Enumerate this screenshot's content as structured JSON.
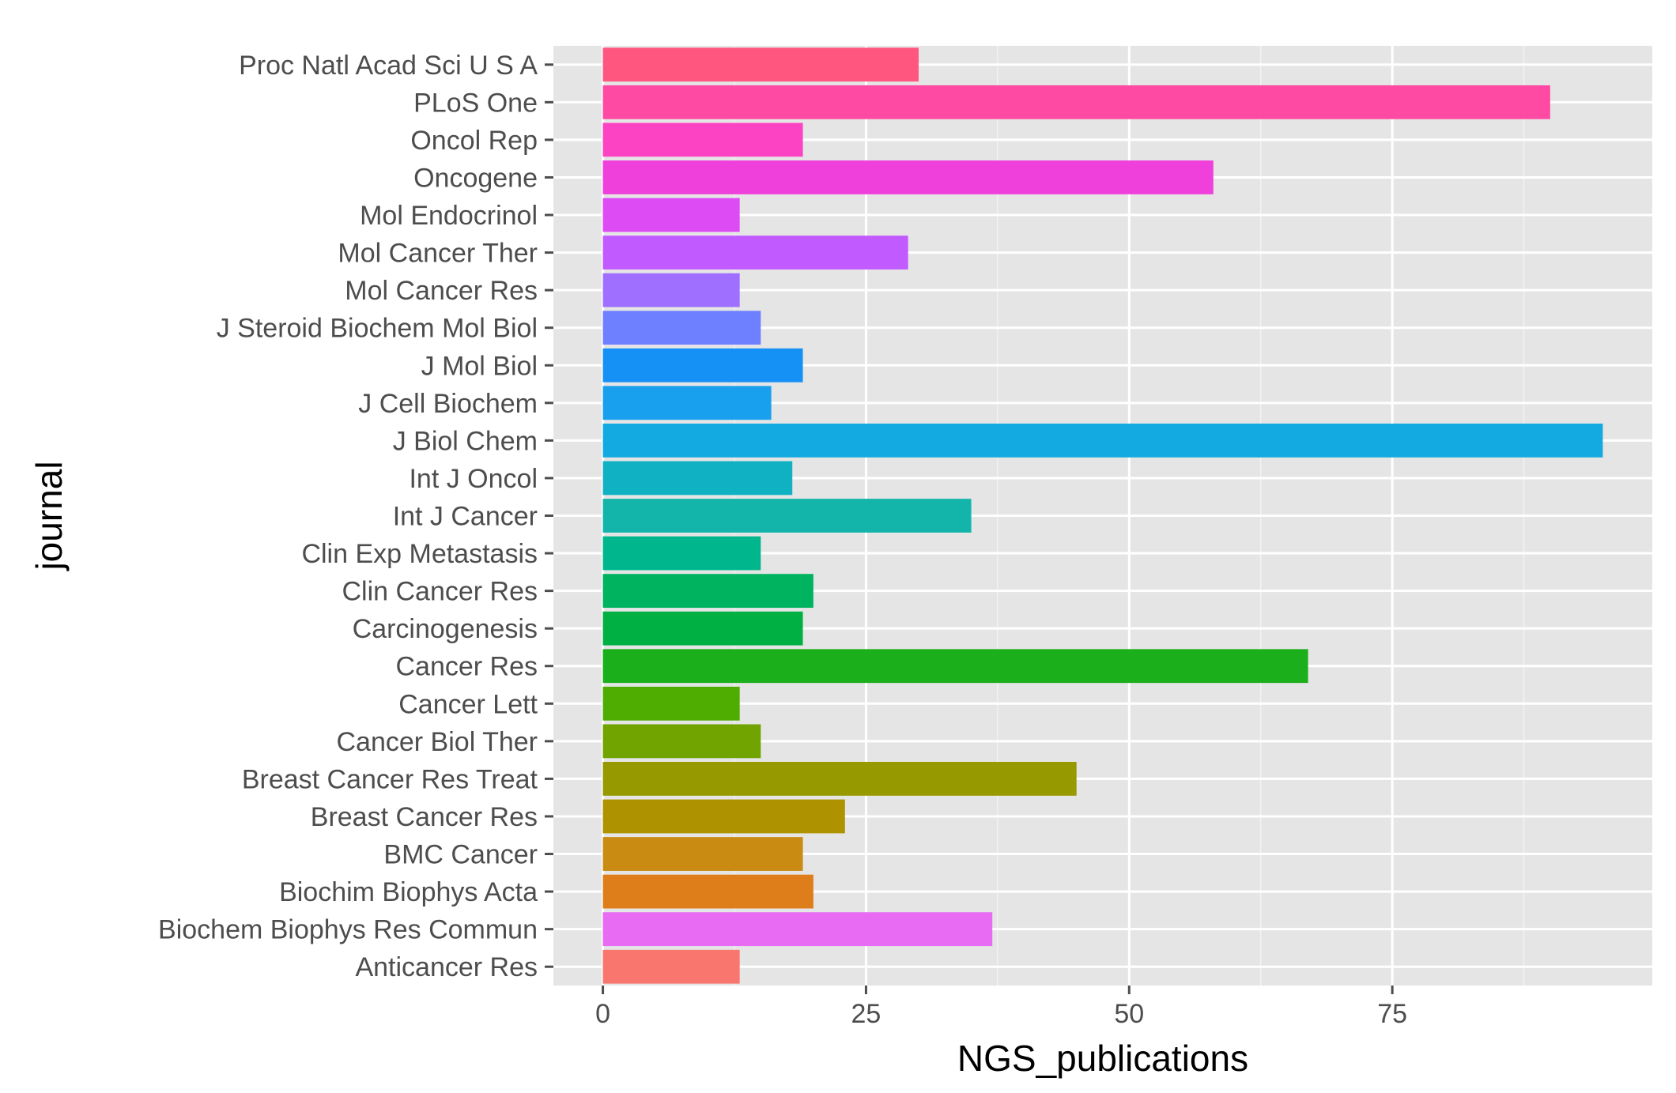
{
  "chart_data": {
    "type": "bar",
    "orientation": "horizontal",
    "title": "",
    "xlabel": "NGS_publications",
    "ylabel": "journal",
    "xlim": [
      -4.7,
      99.7
    ],
    "xticks": [
      0,
      25,
      50,
      75
    ],
    "grid": true,
    "legend": "none",
    "categories": [
      "Anticancer Res",
      "Biochem Biophys Res Commun",
      "Biochim Biophys Acta",
      "BMC Cancer",
      "Breast Cancer Res",
      "Breast Cancer Res Treat",
      "Cancer Biol Ther",
      "Cancer Lett",
      "Cancer Res",
      "Carcinogenesis",
      "Clin Cancer Res",
      "Clin Exp Metastasis",
      "Int J Cancer",
      "Int J Oncol",
      "J Biol Chem",
      "J Cell Biochem",
      "J Mol Biol",
      "J Steroid Biochem Mol Biol",
      "Mol Cancer Res",
      "Mol Cancer Ther",
      "Mol Endocrinol",
      "Oncogene",
      "Oncol Rep",
      "PLoS One",
      "Proc Natl Acad Sci U S A"
    ],
    "values": [
      13,
      37,
      20,
      19,
      23,
      45,
      15,
      13,
      67,
      19,
      20,
      15,
      35,
      18,
      95,
      16,
      19,
      15,
      13,
      29,
      13,
      58,
      19,
      90,
      30
    ],
    "colors": [
      "#F8766D",
      "#E76BF3",
      "#DE7E1A",
      "#C98B12",
      "#AE9200",
      "#969900",
      "#72A400",
      "#4FAC00",
      "#1CAF1C",
      "#00B042",
      "#00B35F",
      "#00B78D",
      "#13B5AA",
      "#10B1C3",
      "#12AAE0",
      "#18A0EF",
      "#1591F5",
      "#6E7FFF",
      "#9F6FFF",
      "#C15BFF",
      "#DD4BF5",
      "#F040DB",
      "#FC43C4",
      "#FF4AA3",
      "#FF5680"
    ]
  }
}
